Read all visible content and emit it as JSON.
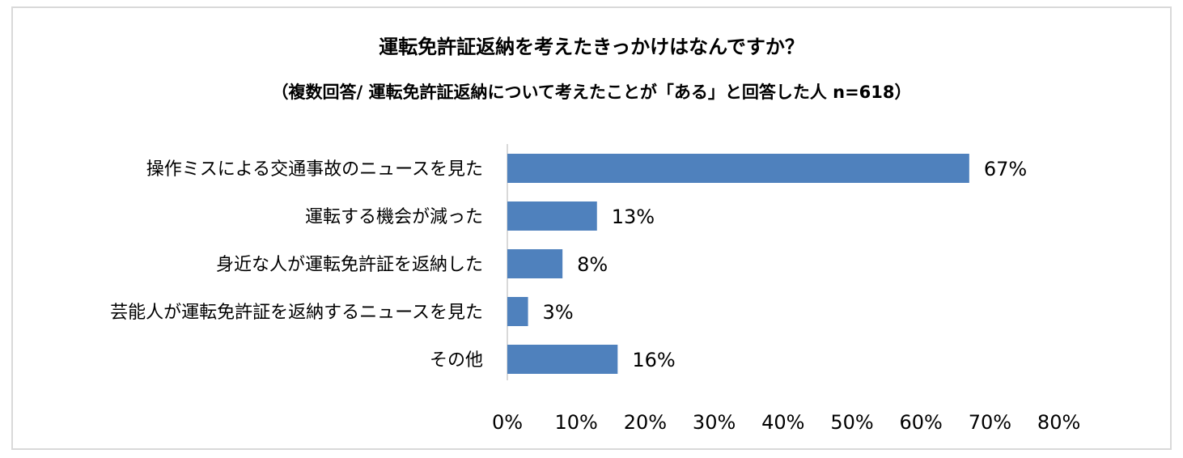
{
  "chart_data": {
    "type": "bar",
    "orientation": "horizontal",
    "title": "運転免許証返納を考えたきっかけはなんですか？",
    "subtitle": "（複数回答/ 運転免許証返納について考えたことが「ある」と回答した人 n=618）",
    "categories": [
      "操作ミスによる交通事故のニュースを見た",
      "運転する機会が減った",
      "身近な人が運転免許証を返納した",
      "芸能人が運転免許証を返納するニュースを見た",
      "その他"
    ],
    "values": [
      67,
      13,
      8,
      3,
      16
    ],
    "value_labels": [
      "67%",
      "13%",
      "8%",
      "3%",
      "16%"
    ],
    "xlim": [
      0,
      80
    ],
    "xticks": [
      0,
      10,
      20,
      30,
      40,
      50,
      60,
      70,
      80
    ],
    "xtick_labels": [
      "0%",
      "10%",
      "20%",
      "30%",
      "40%",
      "50%",
      "60%",
      "70%",
      "80%"
    ],
    "grid": false,
    "bar_color": "#4f81bd",
    "axis_color": "#d9d9d9",
    "border_color": "#d9d9d9"
  }
}
